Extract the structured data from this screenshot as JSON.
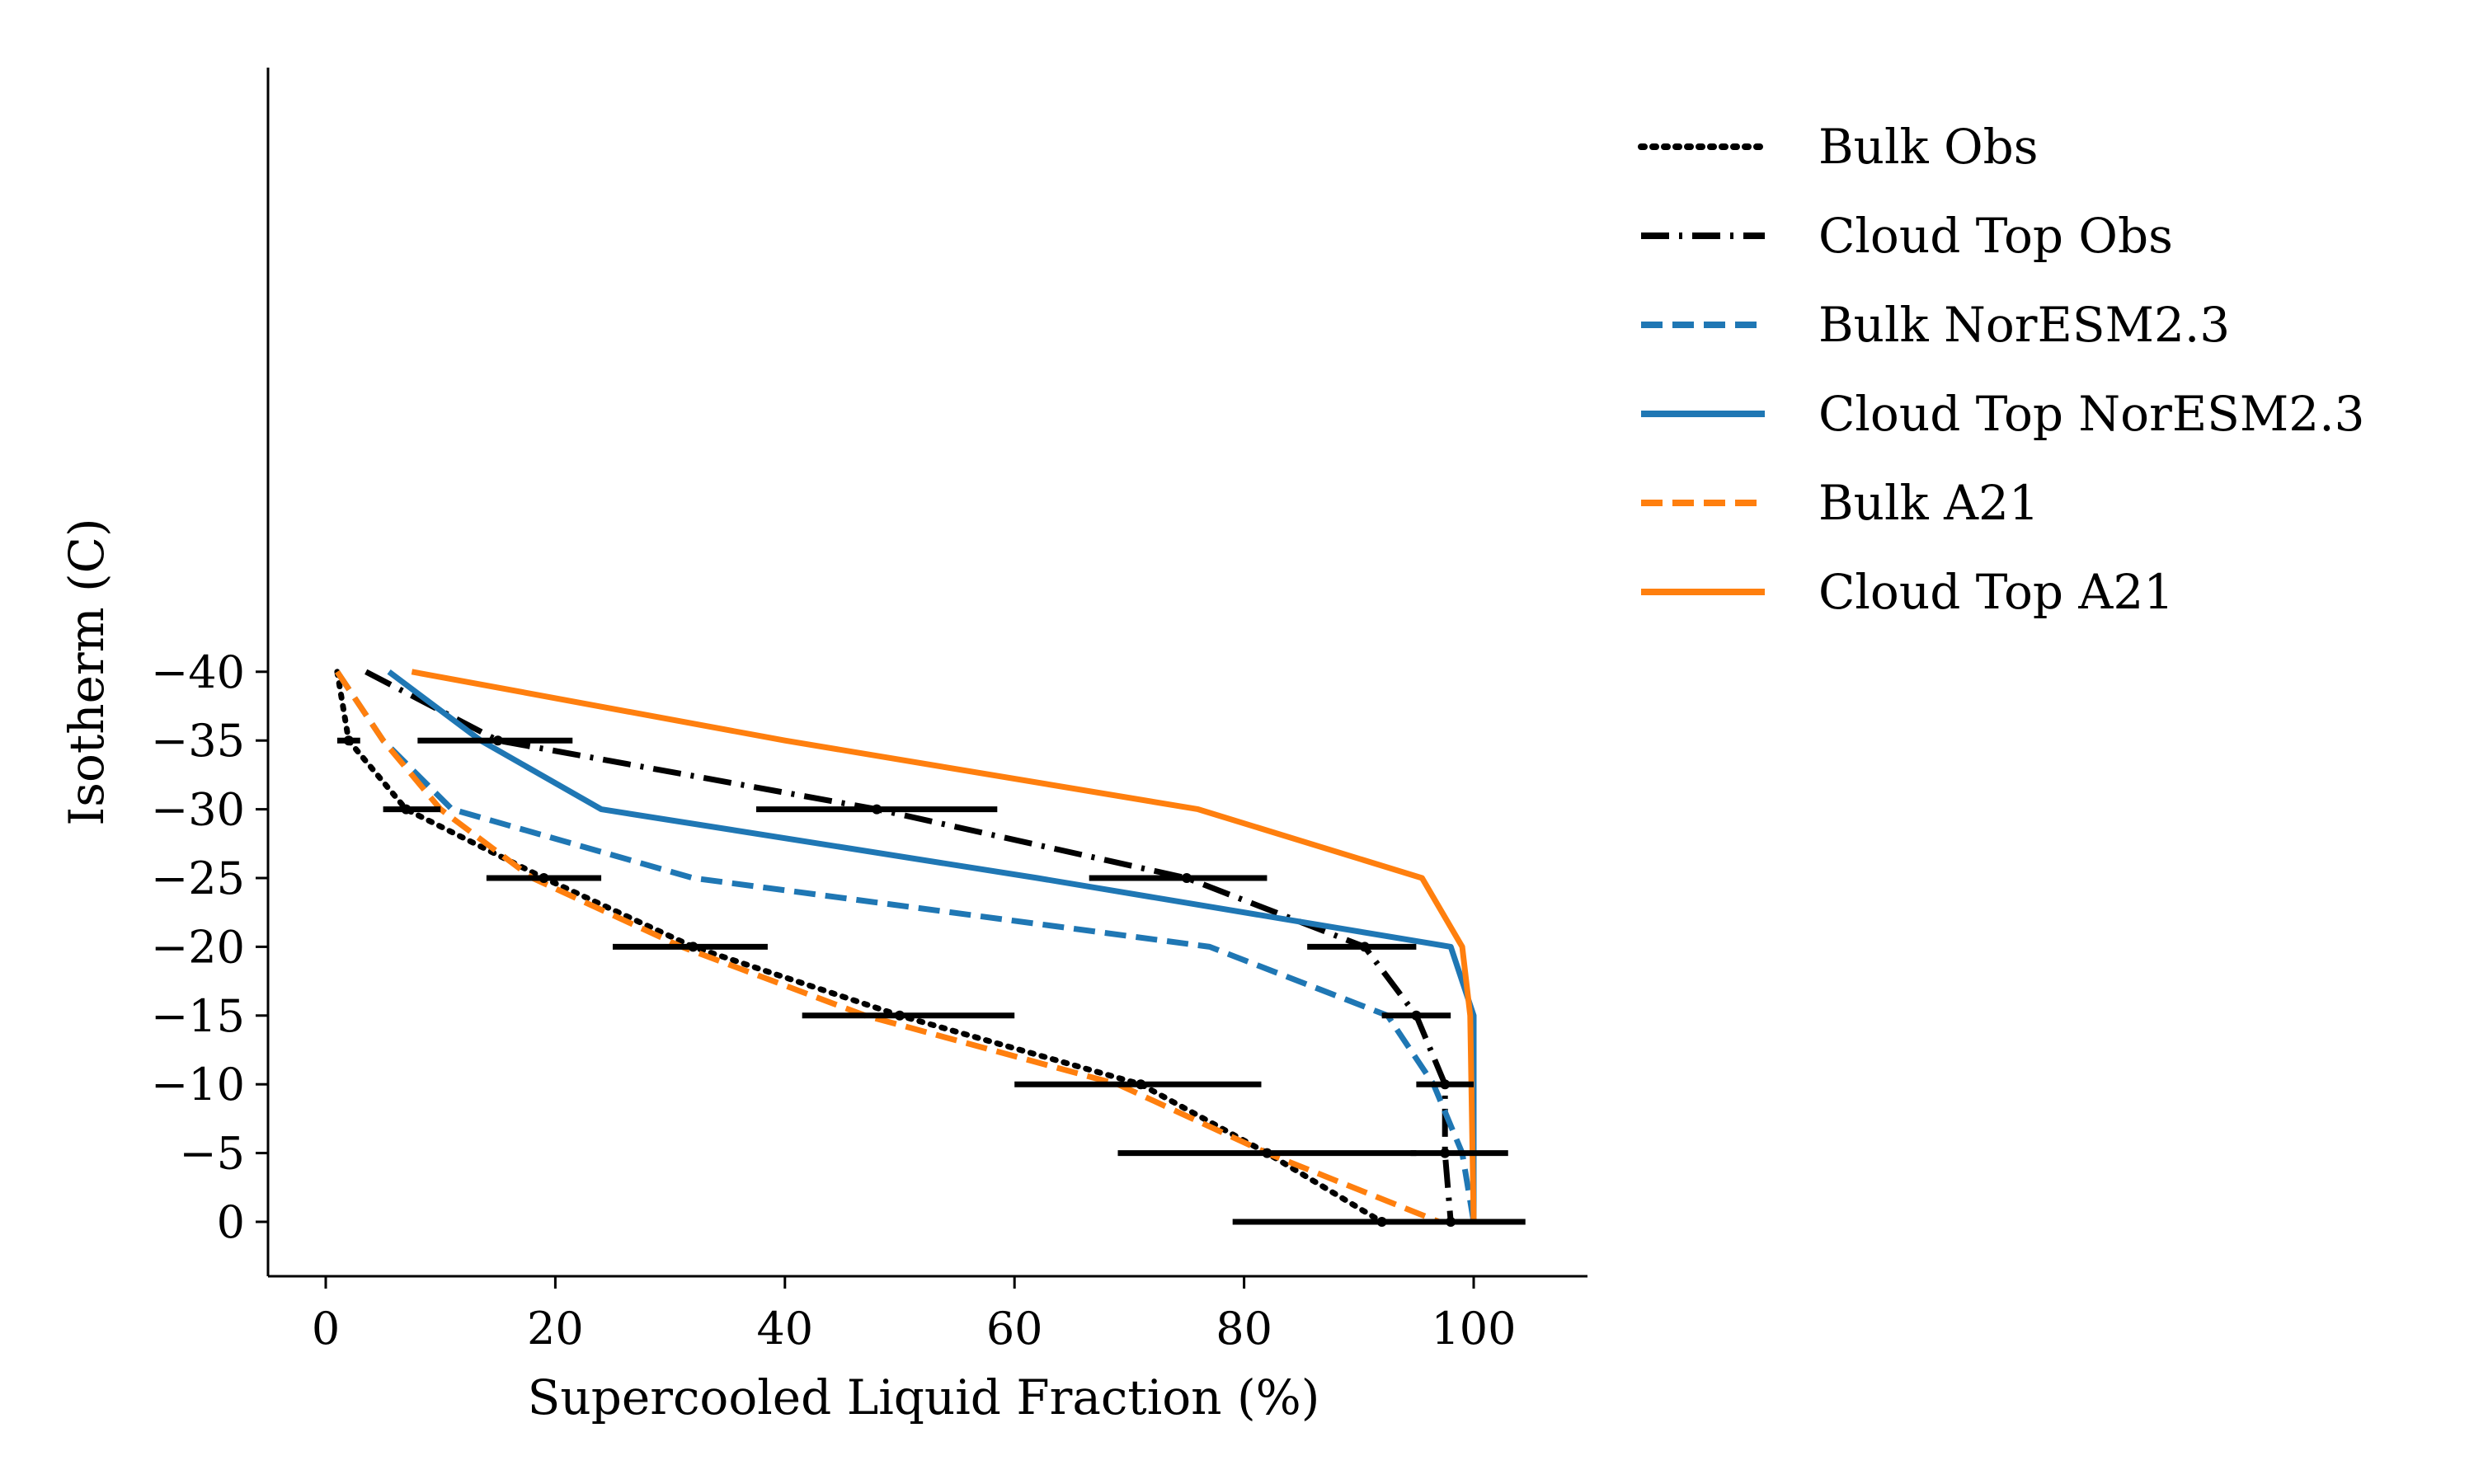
{
  "chart_data": {
    "type": "line",
    "title": "",
    "xlabel": "Supercooled Liquid Fraction (%)",
    "ylabel": "Isotherm (C)",
    "xlim": [
      -5,
      110
    ],
    "ylim": [
      2,
      -42
    ],
    "y_inverted": true,
    "xticks": [
      0,
      20,
      40,
      60,
      80,
      100
    ],
    "xtick_labels": [
      "0",
      "20",
      "40",
      "60",
      "80",
      "100"
    ],
    "yticks": [
      -40,
      -35,
      -30,
      -25,
      -20,
      -15,
      -10,
      -5,
      0
    ],
    "ytick_labels": [
      "−40",
      "−35",
      "−30",
      "−25",
      "−20",
      "−15",
      "−10",
      "−5",
      "0"
    ],
    "grid": false,
    "legend_position": "outside-right-top",
    "isotherms": [
      -40,
      -35,
      -30,
      -25,
      -20,
      -15,
      -10,
      -5,
      0
    ],
    "series": [
      {
        "name": "Bulk Obs",
        "color": "#000000",
        "style": "dotted",
        "x": [
          1,
          2,
          7,
          19,
          32,
          50,
          71,
          82,
          92
        ],
        "y": [
          -40,
          -35,
          -30,
          -25,
          -20,
          -15,
          -10,
          -5,
          0
        ]
      },
      {
        "name": "Cloud Top Obs",
        "color": "#000000",
        "style": "dashdot",
        "x": [
          3.5,
          15,
          48,
          75,
          90.5,
          95,
          97.5,
          97.5,
          98
        ],
        "y": [
          -40,
          -35,
          -30,
          -25,
          -20,
          -15,
          -10,
          -5,
          0
        ]
      },
      {
        "name": "Bulk NorESM2.3",
        "color": "#1f77b4",
        "style": "dashed",
        "x": [
          1,
          5,
          11,
          32,
          77,
          92.5,
          96.5,
          99,
          100
        ],
        "y": [
          -40,
          -35,
          -30,
          -25,
          -20,
          -15,
          -10,
          -5,
          0
        ]
      },
      {
        "name": "Cloud Top NorESM2.3",
        "color": "#1f77b4",
        "style": "solid",
        "x": [
          5.5,
          13.5,
          24,
          62,
          98,
          100,
          100,
          100,
          100
        ],
        "y": [
          -40,
          -35,
          -30,
          -25,
          -20,
          -15,
          -10,
          -5,
          0
        ]
      },
      {
        "name": "Bulk A21",
        "color": "#ff7f0e",
        "style": "dashed",
        "x": [
          1,
          5,
          10,
          18,
          31,
          47,
          69,
          82,
          97
        ],
        "y": [
          -40,
          -35,
          -30,
          -25,
          -20,
          -15,
          -10,
          -5,
          0
        ]
      },
      {
        "name": "Cloud Top A21",
        "color": "#ff7f0e",
        "style": "solid",
        "x": [
          7.5,
          40,
          76,
          95.5,
          99,
          99.7,
          99.8,
          99.9,
          100
        ],
        "y": [
          -40,
          -35,
          -30,
          -25,
          -20,
          -15,
          -10,
          -5,
          0
        ]
      }
    ],
    "error_bars": {
      "color": "#000000",
      "bulk_obs": [
        {
          "y": -35,
          "x": 2,
          "xmin": 1,
          "xmax": 3
        },
        {
          "y": -30,
          "x": 7,
          "xmin": 5,
          "xmax": 10
        },
        {
          "y": -25,
          "x": 19,
          "xmin": 14,
          "xmax": 24
        },
        {
          "y": -20,
          "x": 32,
          "xmin": 25,
          "xmax": 38.5
        },
        {
          "y": -15,
          "x": 50,
          "xmin": 41.5,
          "xmax": 60
        },
        {
          "y": -10,
          "x": 71,
          "xmin": 60,
          "xmax": 81.5
        },
        {
          "y": -5,
          "x": 82,
          "xmin": 69,
          "xmax": 95
        },
        {
          "y": 0,
          "x": 92,
          "xmin": 79,
          "xmax": 104.5
        }
      ],
      "cloud_top_obs": [
        {
          "y": -35,
          "x": 15,
          "xmin": 8,
          "xmax": 21.5
        },
        {
          "y": -30,
          "x": 48,
          "xmin": 37.5,
          "xmax": 58.5
        },
        {
          "y": -25,
          "x": 75,
          "xmin": 66.5,
          "xmax": 82
        },
        {
          "y": -20,
          "x": 90.5,
          "xmin": 85.5,
          "xmax": 95
        },
        {
          "y": -15,
          "x": 95,
          "xmin": 92,
          "xmax": 98
        },
        {
          "y": -10,
          "x": 97.5,
          "xmin": 95,
          "xmax": 100
        },
        {
          "y": -5,
          "x": 97.5,
          "xmin": 94.5,
          "xmax": 103
        },
        {
          "y": 0,
          "x": 98,
          "xmin": 91,
          "xmax": 104.5
        }
      ]
    }
  }
}
